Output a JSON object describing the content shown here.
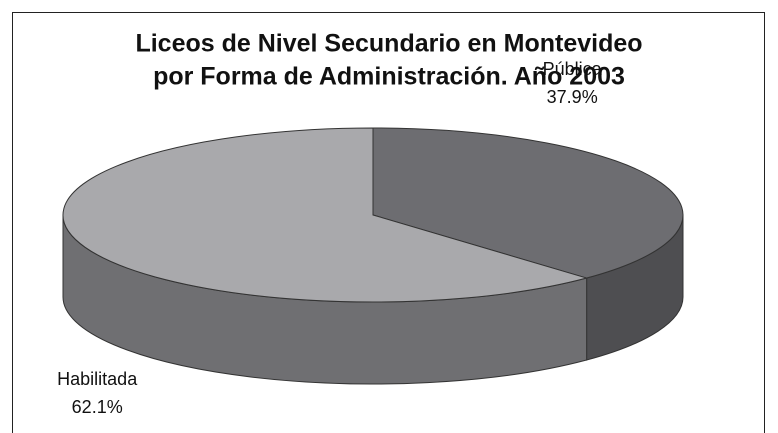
{
  "chart_data": {
    "type": "pie",
    "title": "Liceos de Nivel Secundario en Montevideo",
    "subtitle": "por Forma de Administración. Año 2003",
    "categories": [
      "Pública",
      "Habilitada"
    ],
    "values": [
      37.9,
      62.1
    ],
    "value_labels": [
      "37.9%",
      "62.1%"
    ],
    "colors": [
      "#6d6d71",
      "#a9a9ac"
    ],
    "side_colors": [
      "#4e4e51",
      "#6f6f72"
    ]
  }
}
